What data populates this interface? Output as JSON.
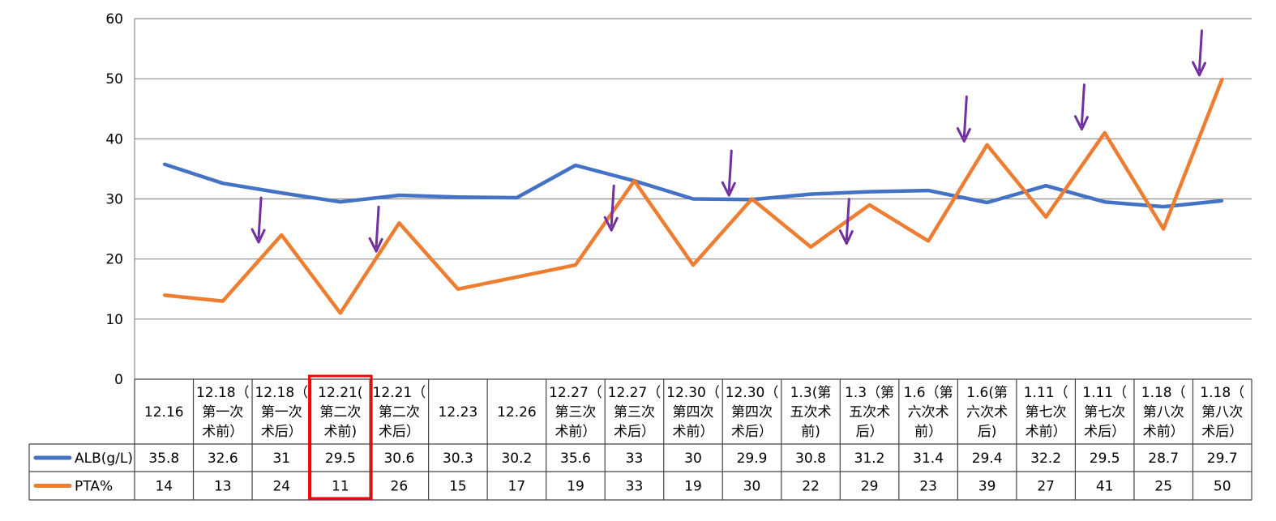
{
  "chart_data": {
    "type": "line",
    "title": "",
    "xlabel": "",
    "ylabel": "",
    "ylim": [
      0,
      60
    ],
    "yticks": [
      0,
      10,
      20,
      30,
      40,
      50,
      60
    ],
    "grid": true,
    "legend": "data-table-left",
    "categories": [
      [
        "12.16"
      ],
      [
        "12.18（",
        "第一次",
        "术前）"
      ],
      [
        "12.18（",
        "第一次",
        "术后）"
      ],
      [
        "12.21(",
        "第二次",
        "术前)"
      ],
      [
        "12.21（",
        "第二次",
        "术后）"
      ],
      [
        "12.23"
      ],
      [
        "12.26"
      ],
      [
        "12.27（",
        "第三次",
        "术前）"
      ],
      [
        "12.27（",
        "第三次",
        "术后）"
      ],
      [
        "12.30（",
        "第四次",
        "术前）"
      ],
      [
        "12.30（",
        "第四次",
        "术后）"
      ],
      [
        "1.3(第",
        "五次术",
        "前)"
      ],
      [
        "1.3（第",
        "五次术",
        "后）"
      ],
      [
        "1.6（第",
        "六次术",
        "前）"
      ],
      [
        "1.6(第",
        "六次术",
        "后)"
      ],
      [
        "1.11（",
        "第七次",
        "术前）"
      ],
      [
        "1.11（",
        "第七次",
        "术后）"
      ],
      [
        "1.18（",
        "第八次",
        "术前）"
      ],
      [
        "1.18（",
        "第八次",
        "术后）"
      ]
    ],
    "series": [
      {
        "name": "ALB(g/L)",
        "color": "#4472C4",
        "values": [
          35.8,
          32.6,
          31,
          29.5,
          30.6,
          30.3,
          30.2,
          35.6,
          33,
          30,
          29.9,
          30.8,
          31.2,
          31.4,
          29.4,
          32.2,
          29.5,
          28.7,
          29.7
        ]
      },
      {
        "name": "PTA%",
        "color": "#ED7D31",
        "values": [
          14,
          13,
          24,
          11,
          26,
          15,
          17,
          19,
          33,
          19,
          30,
          22,
          29,
          23,
          39,
          27,
          41,
          25,
          50
        ]
      }
    ],
    "annotations": {
      "highlight_column": 3,
      "highlight_color": "#FF0000",
      "arrow_color": "#7030A0",
      "arrow_columns": [
        2,
        4,
        8,
        10,
        12,
        14,
        16,
        18
      ]
    }
  }
}
